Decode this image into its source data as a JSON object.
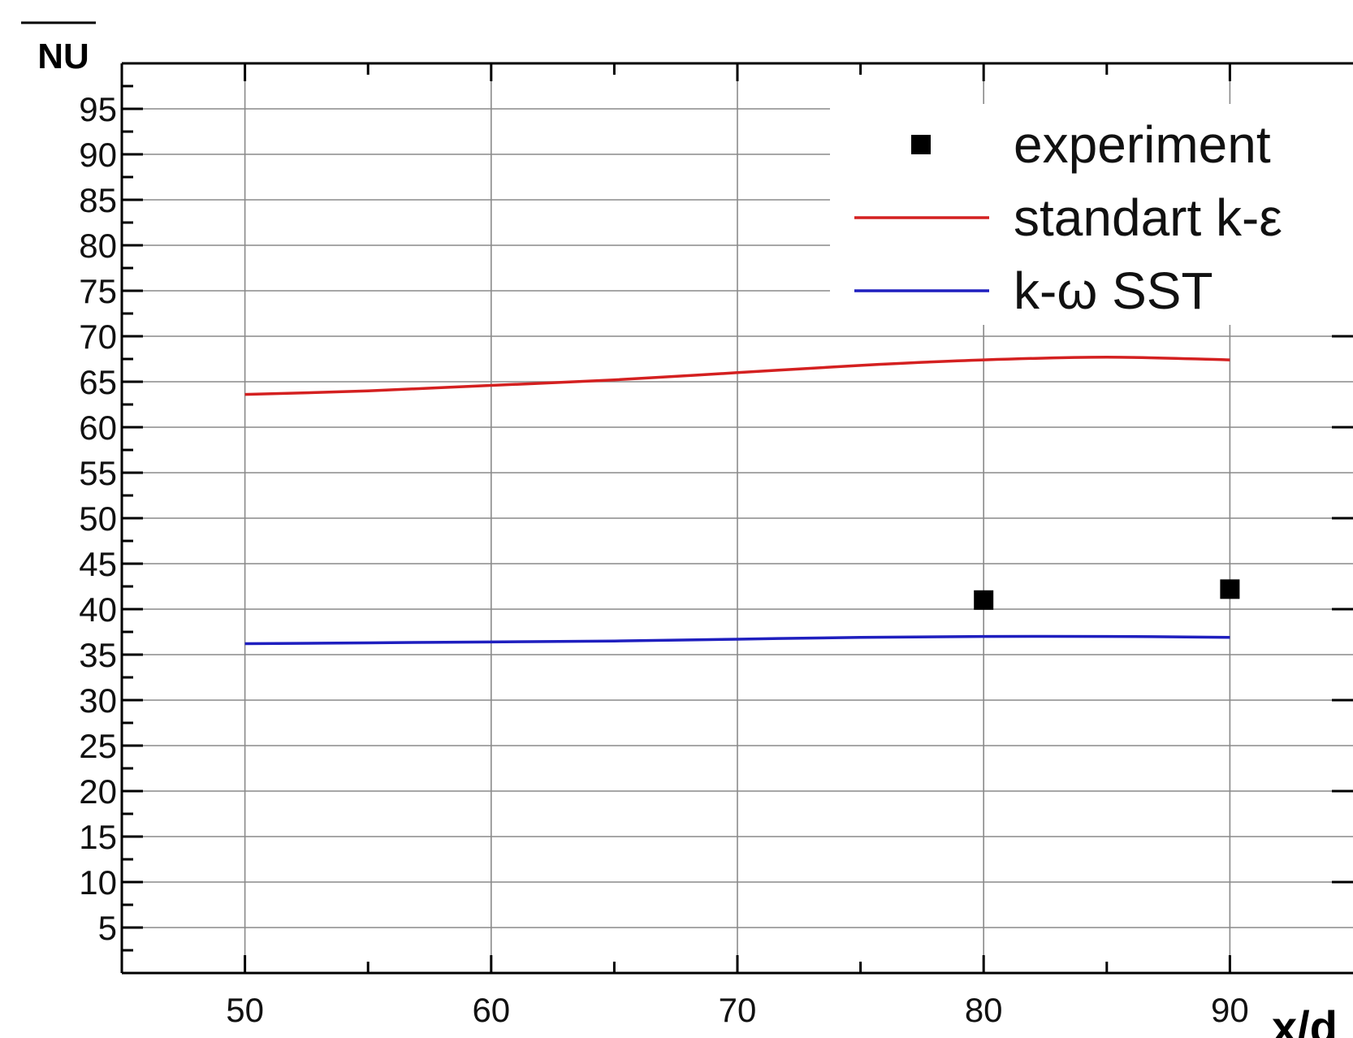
{
  "chart_data": {
    "type": "line",
    "xlabel": "x/d",
    "ylabel": "NU",
    "xlim": [
      45,
      95
    ],
    "ylim": [
      0,
      100
    ],
    "x_ticks": [
      50,
      60,
      70,
      80,
      90
    ],
    "y_ticks": [
      5,
      10,
      15,
      20,
      25,
      30,
      35,
      40,
      45,
      50,
      55,
      60,
      65,
      70,
      75,
      80,
      85,
      90,
      95
    ],
    "grid": true,
    "legend_position": "top-right",
    "series": [
      {
        "name": "experiment",
        "kind": "scatter",
        "marker": "square",
        "color": "#000000",
        "points": [
          [
            80,
            41
          ],
          [
            90,
            42.2
          ]
        ]
      },
      {
        "name": "standart k-ε",
        "kind": "line",
        "color": "#d42020",
        "points": [
          [
            50,
            63.6
          ],
          [
            55,
            64.0
          ],
          [
            60,
            64.6
          ],
          [
            65,
            65.2
          ],
          [
            70,
            66.0
          ],
          [
            75,
            66.8
          ],
          [
            80,
            67.4
          ],
          [
            85,
            67.7
          ],
          [
            90,
            67.4
          ]
        ]
      },
      {
        "name": "k-ω SST",
        "kind": "line",
        "color": "#1f1fbf",
        "points": [
          [
            50,
            36.2
          ],
          [
            55,
            36.3
          ],
          [
            60,
            36.4
          ],
          [
            65,
            36.5
          ],
          [
            70,
            36.7
          ],
          [
            75,
            36.9
          ],
          [
            80,
            37.0
          ],
          [
            85,
            37.0
          ],
          [
            90,
            36.9
          ]
        ]
      }
    ]
  }
}
